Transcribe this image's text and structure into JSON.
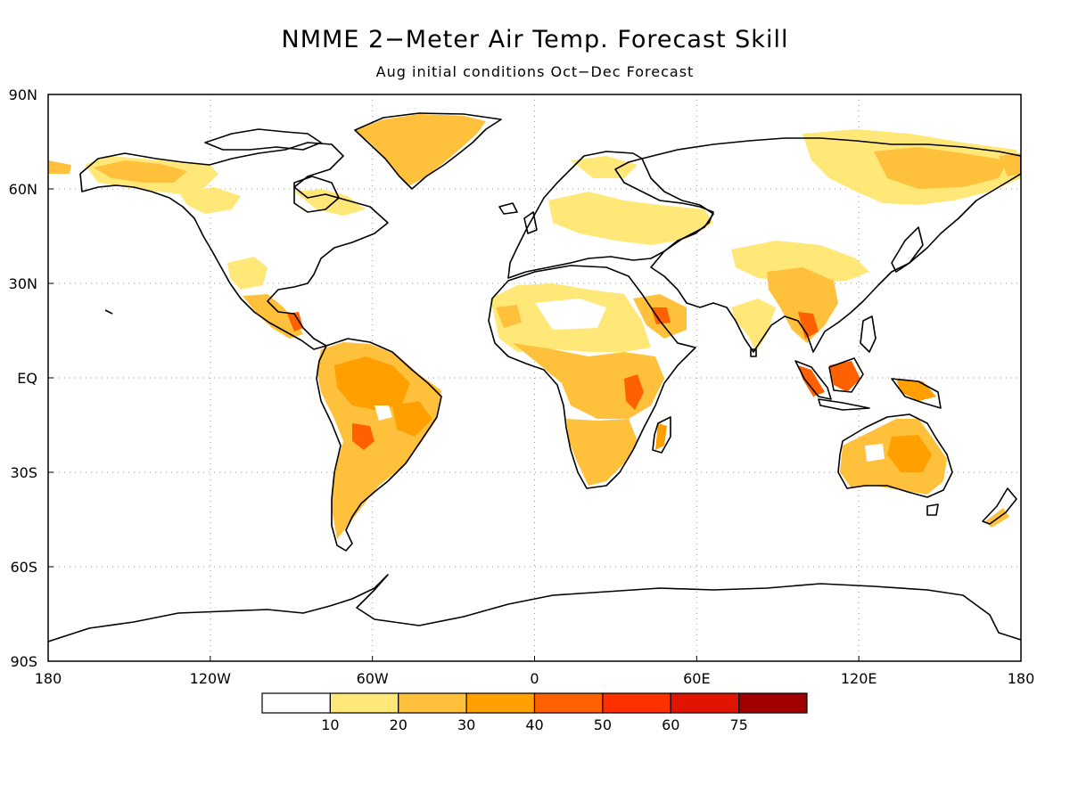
{
  "title": "NMME 2−Meter Air Temp. Forecast Skill",
  "subtitle": "Aug initial conditions   Oct−Dec Forecast",
  "map": {
    "projection": "cylindrical equidistant",
    "lon_range": [
      -180,
      180
    ],
    "lat_range": [
      -90,
      90
    ],
    "lat_ticks": [
      {
        "lat": 90,
        "label": "90N"
      },
      {
        "lat": 60,
        "label": "60N"
      },
      {
        "lat": 30,
        "label": "30N"
      },
      {
        "lat": 0,
        "label": "EQ"
      },
      {
        "lat": -30,
        "label": "30S"
      },
      {
        "lat": -60,
        "label": "60S"
      },
      {
        "lat": -90,
        "label": "90S"
      }
    ],
    "lon_ticks": [
      {
        "lon": -180,
        "label": "180"
      },
      {
        "lon": -120,
        "label": "120W"
      },
      {
        "lon": -60,
        "label": "60W"
      },
      {
        "lon": 0,
        "label": "0"
      },
      {
        "lon": 60,
        "label": "60E"
      },
      {
        "lon": 120,
        "label": "120E"
      },
      {
        "lon": 180,
        "label": "180"
      }
    ],
    "grid": "dotted"
  },
  "colorbar": {
    "bins": [
      {
        "color": "#ffffff"
      },
      {
        "color": "#ffe878"
      },
      {
        "color": "#ffc03c"
      },
      {
        "color": "#ffa000"
      },
      {
        "color": "#ff6000"
      },
      {
        "color": "#ff3000"
      },
      {
        "color": "#e01400"
      },
      {
        "color": "#a00000"
      }
    ],
    "labels": [
      "10",
      "20",
      "30",
      "40",
      "50",
      "60",
      "75"
    ]
  },
  "skill_regions": [
    {
      "name": "Greenland",
      "lon": -40,
      "lat": 74,
      "level": 2
    },
    {
      "name": "Alaska-Yukon",
      "lon": -150,
      "lat": 66,
      "level": 2
    },
    {
      "name": "Central Canada",
      "lon": -85,
      "lat": 60,
      "level": 1
    },
    {
      "name": "Southwest US",
      "lon": -112,
      "lat": 33,
      "level": 2
    },
    {
      "name": "Mexico",
      "lon": -100,
      "lat": 20,
      "level": 3
    },
    {
      "name": "Central America",
      "lon": -88,
      "lat": 14,
      "level": 4
    },
    {
      "name": "Amazon",
      "lon": -60,
      "lat": -5,
      "level": 3
    },
    {
      "name": "Central South America",
      "lon": -55,
      "lat": -18,
      "level": 4
    },
    {
      "name": "Southern South America",
      "lon": -65,
      "lat": -35,
      "level": 2
    },
    {
      "name": "Sahara",
      "lon": 5,
      "lat": 22,
      "level": 1
    },
    {
      "name": "West Africa",
      "lon": -2,
      "lat": 12,
      "level": 2
    },
    {
      "name": "Central Africa",
      "lon": 22,
      "lat": 3,
      "level": 3
    },
    {
      "name": "East Africa",
      "lon": 36,
      "lat": -3,
      "level": 4
    },
    {
      "name": "Southern Africa",
      "lon": 24,
      "lat": -24,
      "level": 3
    },
    {
      "name": "Madagascar",
      "lon": 46,
      "lat": -19,
      "level": 3
    },
    {
      "name": "Arabia",
      "lon": 46,
      "lat": 20,
      "level": 3
    },
    {
      "name": "Eastern Europe",
      "lon": 35,
      "lat": 52,
      "level": 1
    },
    {
      "name": "Siberia",
      "lon": 140,
      "lat": 66,
      "level": 2
    },
    {
      "name": "India",
      "lon": 78,
      "lat": 20,
      "level": 2
    },
    {
      "name": "Southeast Asia",
      "lon": 103,
      "lat": 16,
      "level": 4
    },
    {
      "name": "Indonesia",
      "lon": 113,
      "lat": 0,
      "level": 4
    },
    {
      "name": "New Guinea",
      "lon": 142,
      "lat": -5,
      "level": 3
    },
    {
      "name": "Australia",
      "lon": 135,
      "lat": -25,
      "level": 3
    }
  ]
}
